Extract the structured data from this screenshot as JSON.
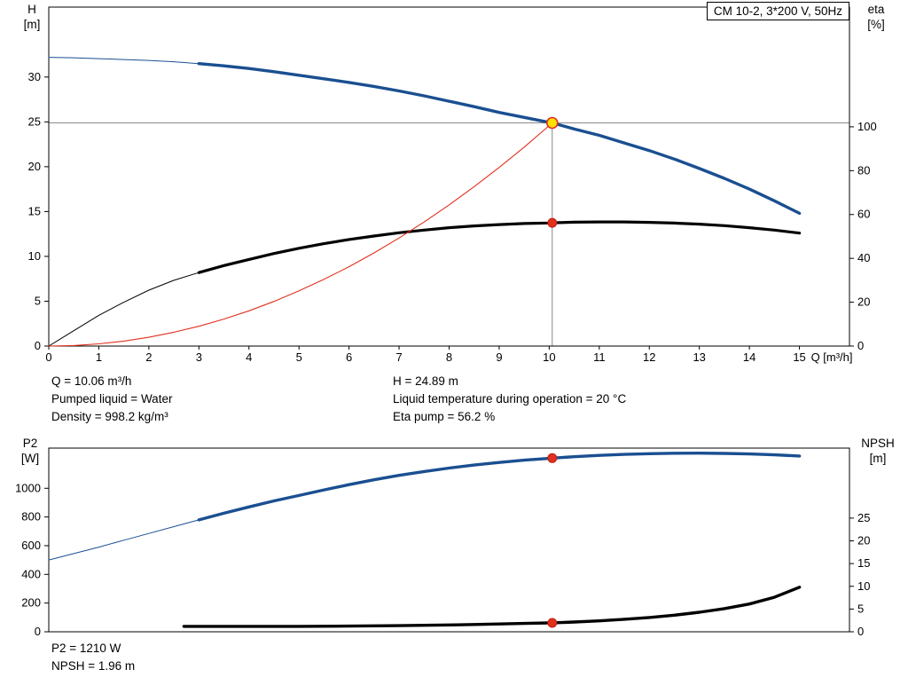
{
  "info_top": {
    "q": "Q = 10.06 m³/h",
    "pumped_liquid": "Pumped liquid = Water",
    "density": "Density = 998.2 kg/m³",
    "h": "H = 24.89 m",
    "temperature": "Liquid temperature during operation = 20 °C",
    "eta": "Eta pump = 56.2 %"
  },
  "info_bottom": {
    "p2": "P2 = 1210 W",
    "npsh": "NPSH = 1.96 m"
  },
  "chart_data": [
    {
      "type": "line",
      "title": "CM 10-2, 3*200 V, 50Hz",
      "x_axis": {
        "label": "Q [m³/h]",
        "min": 0,
        "max": 16,
        "ticks": [
          0,
          1,
          2,
          3,
          4,
          5,
          6,
          7,
          8,
          9,
          10,
          11,
          12,
          13,
          14,
          15
        ]
      },
      "y_left": {
        "name": "H",
        "unit": "[m]",
        "min": 0,
        "max": 37.8,
        "ticks": [
          0,
          5,
          10,
          15,
          20,
          25,
          30
        ]
      },
      "y_right": {
        "name": "eta",
        "unit": "[%]",
        "min": 0,
        "max": 154.6,
        "ticks": [
          0,
          20,
          40,
          60,
          80,
          100
        ]
      },
      "crosshair": {
        "x": 10.06,
        "y": 24.89,
        "color": "#8a8a8a"
      },
      "series": [
        {
          "name": "head-curve",
          "axis": "left",
          "color": "#1a4f91",
          "thin_until": 3,
          "width": 3.4,
          "points": [
            [
              0,
              32.2
            ],
            [
              0.5,
              32.15
            ],
            [
              1,
              32.05
            ],
            [
              1.5,
              31.95
            ],
            [
              2,
              31.85
            ],
            [
              2.5,
              31.7
            ],
            [
              3,
              31.5
            ],
            [
              3.5,
              31.25
            ],
            [
              4,
              30.95
            ],
            [
              4.5,
              30.6
            ],
            [
              5,
              30.2
            ],
            [
              5.5,
              29.8
            ],
            [
              6,
              29.4
            ],
            [
              6.5,
              28.95
            ],
            [
              7,
              28.45
            ],
            [
              7.5,
              27.9
            ],
            [
              8,
              27.3
            ],
            [
              8.5,
              26.7
            ],
            [
              9,
              26.05
            ],
            [
              9.5,
              25.5
            ],
            [
              10,
              24.95
            ],
            [
              10.06,
              24.89
            ],
            [
              10.5,
              24.2
            ],
            [
              11,
              23.5
            ],
            [
              11.5,
              22.65
            ],
            [
              12,
              21.8
            ],
            [
              12.5,
              20.85
            ],
            [
              13,
              19.8
            ],
            [
              13.5,
              18.7
            ],
            [
              14,
              17.5
            ],
            [
              14.5,
              16.2
            ],
            [
              15,
              14.8
            ]
          ]
        },
        {
          "name": "eta-curve",
          "axis": "right",
          "color": "#000000",
          "thin_until": 3,
          "width": 3.2,
          "points": [
            [
              0,
              0
            ],
            [
              0.5,
              7
            ],
            [
              1,
              14
            ],
            [
              1.5,
              20
            ],
            [
              2,
              25.5
            ],
            [
              2.5,
              30
            ],
            [
              3,
              33.5
            ],
            [
              3.5,
              36.7
            ],
            [
              4,
              39.5
            ],
            [
              4.5,
              42.2
            ],
            [
              5,
              44.6
            ],
            [
              5.5,
              46.7
            ],
            [
              6,
              48.6
            ],
            [
              6.5,
              50.2
            ],
            [
              7,
              51.7
            ],
            [
              7.5,
              52.9
            ],
            [
              8,
              54
            ],
            [
              8.5,
              54.8
            ],
            [
              9,
              55.4
            ],
            [
              9.5,
              55.9
            ],
            [
              10,
              56.15
            ],
            [
              10.06,
              56.2
            ],
            [
              10.5,
              56.5
            ],
            [
              11,
              56.6
            ],
            [
              11.5,
              56.6
            ],
            [
              12,
              56.4
            ],
            [
              12.5,
              56.1
            ],
            [
              13,
              55.6
            ],
            [
              13.5,
              54.9
            ],
            [
              14,
              54
            ],
            [
              14.5,
              52.9
            ],
            [
              15,
              51.5
            ]
          ]
        },
        {
          "name": "system-curve",
          "axis": "left",
          "color": "#e0301e",
          "width": 1.1,
          "points": [
            [
              0,
              0
            ],
            [
              0.5,
              0.06
            ],
            [
              1,
              0.25
            ],
            [
              1.5,
              0.55
            ],
            [
              2,
              0.98
            ],
            [
              2.5,
              1.54
            ],
            [
              3,
              2.21
            ],
            [
              3.5,
              3.01
            ],
            [
              4,
              3.93
            ],
            [
              4.5,
              4.98
            ],
            [
              5,
              6.15
            ],
            [
              5.5,
              7.44
            ],
            [
              6,
              8.85
            ],
            [
              6.5,
              10.39
            ],
            [
              7,
              12.05
            ],
            [
              7.5,
              13.83
            ],
            [
              8,
              15.74
            ],
            [
              8.5,
              17.77
            ],
            [
              9,
              19.92
            ],
            [
              9.5,
              22.19
            ],
            [
              10,
              24.59
            ],
            [
              10.06,
              24.89
            ]
          ]
        }
      ],
      "markers": [
        {
          "name": "operating-point",
          "x": 10.06,
          "y": 24.89,
          "axis": "left",
          "r": 6,
          "fill": "#ffe000",
          "stroke": "#e0301e",
          "stroke_width": 1.6,
          "interactable": true
        },
        {
          "name": "eta-point",
          "x": 10.06,
          "y": 56.2,
          "axis": "right",
          "r": 5,
          "fill": "#e0301e",
          "stroke": "#c02014",
          "stroke_width": 1,
          "interactable": false
        }
      ]
    },
    {
      "type": "line",
      "title": "",
      "x_axis": {
        "label": "",
        "min": 0,
        "max": 16,
        "ticks": []
      },
      "y_left": {
        "name": "P2",
        "unit": "[W]",
        "min": 0,
        "max": 1280,
        "ticks": [
          0,
          200,
          400,
          600,
          800,
          1000
        ]
      },
      "y_right": {
        "name": "NPSH",
        "unit": "[m]",
        "min": 0,
        "max": 40.4,
        "ticks": [
          0,
          5,
          10,
          15,
          20,
          25
        ]
      },
      "series": [
        {
          "name": "p2-curve",
          "axis": "left",
          "color": "#1a4f91",
          "thin_until": 3,
          "width": 3.4,
          "points": [
            [
              0,
              500
            ],
            [
              0.5,
              545
            ],
            [
              1,
              590
            ],
            [
              1.5,
              638
            ],
            [
              2,
              685
            ],
            [
              2.5,
              733
            ],
            [
              3,
              780
            ],
            [
              3.5,
              826
            ],
            [
              4,
              870
            ],
            [
              4.5,
              912
            ],
            [
              5,
              950
            ],
            [
              5.5,
              989
            ],
            [
              6,
              1025
            ],
            [
              6.5,
              1059
            ],
            [
              7,
              1090
            ],
            [
              7.5,
              1117
            ],
            [
              8,
              1141
            ],
            [
              8.5,
              1162
            ],
            [
              9,
              1180
            ],
            [
              9.5,
              1196
            ],
            [
              10,
              1208
            ],
            [
              10.06,
              1210
            ],
            [
              10.5,
              1220
            ],
            [
              11,
              1229
            ],
            [
              11.5,
              1236
            ],
            [
              12,
              1241
            ],
            [
              12.5,
              1244
            ],
            [
              13,
              1245
            ],
            [
              13.5,
              1243
            ],
            [
              14,
              1239
            ],
            [
              14.5,
              1233
            ],
            [
              15,
              1225
            ]
          ]
        },
        {
          "name": "npsh-curve",
          "axis": "right",
          "color": "#000000",
          "width": 3.4,
          "points": [
            [
              2.7,
              1.2
            ],
            [
              3,
              1.2
            ],
            [
              4,
              1.2
            ],
            [
              5,
              1.2
            ],
            [
              6,
              1.25
            ],
            [
              7,
              1.35
            ],
            [
              8,
              1.5
            ],
            [
              8.5,
              1.6
            ],
            [
              9,
              1.72
            ],
            [
              9.5,
              1.84
            ],
            [
              10,
              1.95
            ],
            [
              10.06,
              1.96
            ],
            [
              10.5,
              2.15
            ],
            [
              11,
              2.4
            ],
            [
              11.5,
              2.75
            ],
            [
              12,
              3.15
            ],
            [
              12.5,
              3.65
            ],
            [
              13,
              4.3
            ],
            [
              13.5,
              5.1
            ],
            [
              14,
              6.1
            ],
            [
              14.5,
              7.6
            ],
            [
              15,
              9.8
            ]
          ]
        }
      ],
      "markers": [
        {
          "name": "p2-point",
          "x": 10.06,
          "y": 1210,
          "axis": "left",
          "r": 5,
          "fill": "#e0301e",
          "stroke": "#c02014",
          "stroke_width": 1,
          "interactable": false
        },
        {
          "name": "npsh-point",
          "x": 10.06,
          "y": 1.96,
          "axis": "right",
          "r": 5,
          "fill": "#e0301e",
          "stroke": "#c02014",
          "stroke_width": 1,
          "interactable": false
        }
      ]
    }
  ]
}
